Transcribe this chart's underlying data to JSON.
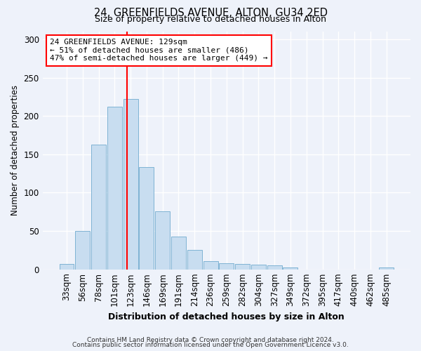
{
  "title1": "24, GREENFIELDS AVENUE, ALTON, GU34 2ED",
  "title2": "Size of property relative to detached houses in Alton",
  "xlabel": "Distribution of detached houses by size in Alton",
  "ylabel": "Number of detached properties",
  "bar_labels": [
    "33sqm",
    "56sqm",
    "78sqm",
    "101sqm",
    "123sqm",
    "146sqm",
    "169sqm",
    "191sqm",
    "214sqm",
    "236sqm",
    "259sqm",
    "282sqm",
    "304sqm",
    "327sqm",
    "349sqm",
    "372sqm",
    "395sqm",
    "417sqm",
    "440sqm",
    "462sqm",
    "485sqm"
  ],
  "bar_values": [
    7,
    50,
    163,
    212,
    222,
    133,
    76,
    43,
    25,
    11,
    8,
    7,
    6,
    5,
    2,
    0,
    0,
    0,
    0,
    0,
    2
  ],
  "bar_color": "#c8ddf0",
  "bar_edge_color": "#7fb3d3",
  "vline_color": "red",
  "annotation_text": "24 GREENFIELDS AVENUE: 129sqm\n← 51% of detached houses are smaller (486)\n47% of semi-detached houses are larger (449) →",
  "annotation_box_color": "white",
  "annotation_box_edge": "red",
  "ylim": [
    0,
    310
  ],
  "yticks": [
    0,
    50,
    100,
    150,
    200,
    250,
    300
  ],
  "footer1": "Contains HM Land Registry data © Crown copyright and database right 2024.",
  "footer2": "Contains public sector information licensed under the Open Government Licence v3.0.",
  "bg_color": "#eef2fa",
  "plot_bg_color": "#eef2fa",
  "grid_color": "#ffffff",
  "title1_fontsize": 10.5,
  "title2_fontsize": 9
}
